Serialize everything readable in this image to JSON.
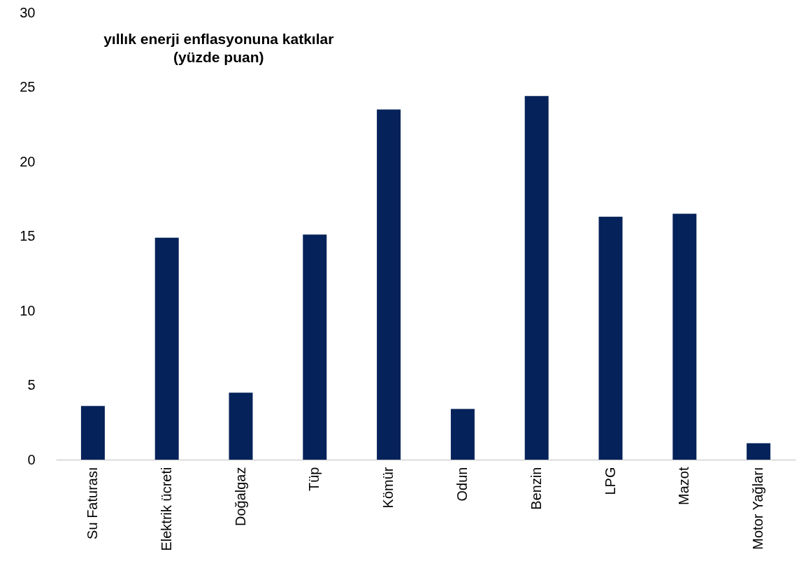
{
  "chart_data": {
    "type": "bar",
    "title": [
      "yıllık enerji enflasyonuna katkılar",
      "(yüzde puan)"
    ],
    "categories": [
      "Su Faturası",
      "Elektrik ücreti",
      "Doğalgaz",
      "Tüp",
      "Kömür",
      "Odun",
      "Benzin",
      "LPG",
      "Mazot",
      "Motor Yağları"
    ],
    "values": [
      3.6,
      14.9,
      4.5,
      15.1,
      23.5,
      3.4,
      24.4,
      16.3,
      16.5,
      1.1
    ],
    "color": "#06225a",
    "ylim": [
      0,
      30
    ],
    "yticks": [
      0,
      5,
      10,
      15,
      20,
      25,
      30
    ],
    "grid": false
  }
}
